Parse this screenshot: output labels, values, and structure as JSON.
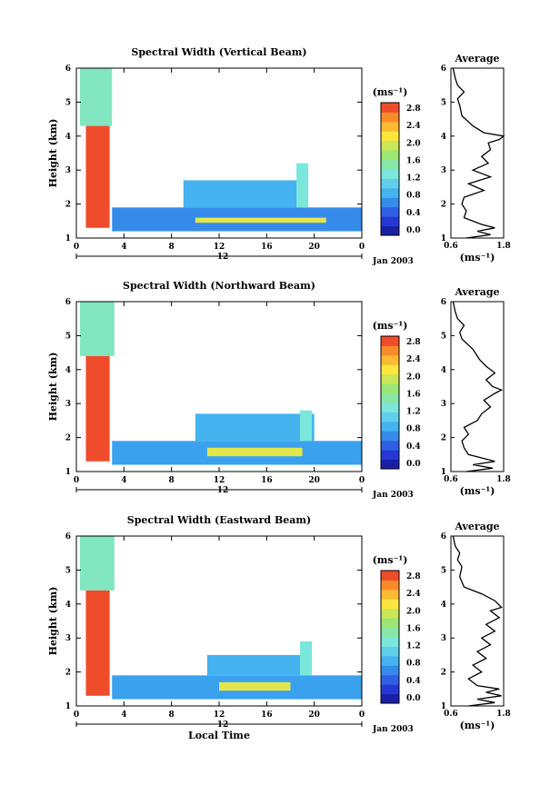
{
  "figure": {
    "xlabel": "Local Time",
    "date_label": "Jan 2003",
    "day_label": "12",
    "colorbar_unit": "(ms⁻¹)",
    "avg_title": "Average",
    "avg_xlabel": "(ms⁻¹)"
  },
  "chart_data": [
    {
      "type": "heatmap",
      "title": "Spectral Width (Vertical Beam)",
      "ylabel": "Height (km)",
      "xlim": [
        0,
        24
      ],
      "ylim": [
        1,
        6
      ],
      "xticks": [
        "0",
        "4",
        "8",
        "12",
        "16",
        "20",
        "0"
      ],
      "yticks": [
        "1",
        "2",
        "3",
        "4",
        "5",
        "6"
      ],
      "colorbar": {
        "range": [
          0.0,
          2.8
        ],
        "ticks": [
          "0.0",
          "0.4",
          "0.8",
          "1.2",
          "1.6",
          "2.0",
          "2.4",
          "2.8"
        ]
      },
      "features": [
        {
          "t": [
            0.3,
            3.0
          ],
          "h": [
            4.3,
            6.0
          ],
          "value": 1.4
        },
        {
          "t": [
            0.8,
            2.8
          ],
          "h": [
            1.3,
            4.3
          ],
          "value": 2.7
        },
        {
          "t": [
            3.0,
            24.0
          ],
          "h": [
            1.2,
            1.9
          ],
          "value": 0.7
        },
        {
          "t": [
            9.0,
            19.0
          ],
          "h": [
            1.9,
            2.7
          ],
          "value": 0.9
        },
        {
          "t": [
            18.5,
            19.5
          ],
          "h": [
            1.9,
            3.2
          ],
          "value": 1.3
        },
        {
          "t": [
            10.0,
            21.0
          ],
          "h": [
            1.45,
            1.6
          ],
          "value": 2.0
        }
      ],
      "average": {
        "xlim": [
          0.6,
          1.8
        ],
        "xticks": [
          "0.6",
          "1.8"
        ],
        "profile": [
          [
            1.0,
            0.95
          ],
          [
            1.1,
            1.5
          ],
          [
            1.2,
            1.2
          ],
          [
            1.3,
            1.6
          ],
          [
            1.4,
            1.3
          ],
          [
            1.6,
            0.9
          ],
          [
            1.8,
            0.95
          ],
          [
            2.0,
            0.85
          ],
          [
            2.2,
            0.9
          ],
          [
            2.4,
            1.35
          ],
          [
            2.6,
            1.0
          ],
          [
            2.8,
            1.5
          ],
          [
            3.0,
            1.1
          ],
          [
            3.2,
            1.45
          ],
          [
            3.4,
            1.3
          ],
          [
            3.6,
            1.5
          ],
          [
            3.8,
            1.45
          ],
          [
            3.9,
            1.7
          ],
          [
            4.0,
            1.8
          ],
          [
            4.1,
            1.35
          ],
          [
            4.3,
            1.1
          ],
          [
            4.6,
            0.85
          ],
          [
            4.9,
            0.8
          ],
          [
            5.1,
            0.75
          ],
          [
            5.3,
            0.9
          ],
          [
            5.5,
            0.75
          ],
          [
            5.7,
            0.7
          ],
          [
            6.0,
            0.65
          ]
        ]
      }
    },
    {
      "type": "heatmap",
      "title": "Spectral Width (Northward Beam)",
      "ylabel": "Height (km)",
      "xlim": [
        0,
        24
      ],
      "ylim": [
        1,
        6
      ],
      "xticks": [
        "0",
        "4",
        "8",
        "12",
        "16",
        "20",
        "0"
      ],
      "yticks": [
        "1",
        "2",
        "3",
        "4",
        "5",
        "6"
      ],
      "colorbar": {
        "range": [
          0.0,
          2.8
        ],
        "ticks": [
          "0.0",
          "0.4",
          "0.8",
          "1.2",
          "1.6",
          "2.0",
          "2.4",
          "2.8"
        ]
      },
      "features": [
        {
          "t": [
            0.3,
            3.2
          ],
          "h": [
            4.4,
            6.0
          ],
          "value": 1.4
        },
        {
          "t": [
            0.8,
            2.8
          ],
          "h": [
            1.3,
            4.4
          ],
          "value": 2.7
        },
        {
          "t": [
            3.0,
            24.0
          ],
          "h": [
            1.2,
            1.9
          ],
          "value": 0.8
        },
        {
          "t": [
            10.0,
            20.0
          ],
          "h": [
            1.9,
            2.7
          ],
          "value": 0.9
        },
        {
          "t": [
            18.8,
            19.8
          ],
          "h": [
            1.9,
            2.8
          ],
          "value": 1.3
        },
        {
          "t": [
            11.0,
            19.0
          ],
          "h": [
            1.45,
            1.7
          ],
          "value": 2.0
        }
      ],
      "average": {
        "xlim": [
          0.6,
          1.8
        ],
        "xticks": [
          "0.6",
          "1.8"
        ],
        "profile": [
          [
            1.0,
            0.95
          ],
          [
            1.1,
            1.55
          ],
          [
            1.2,
            1.1
          ],
          [
            1.3,
            1.6
          ],
          [
            1.5,
            1.0
          ],
          [
            1.7,
            0.9
          ],
          [
            1.9,
            0.85
          ],
          [
            2.1,
            1.0
          ],
          [
            2.3,
            0.9
          ],
          [
            2.5,
            1.2
          ],
          [
            2.7,
            1.3
          ],
          [
            2.9,
            1.5
          ],
          [
            3.1,
            1.35
          ],
          [
            3.3,
            1.6
          ],
          [
            3.4,
            1.75
          ],
          [
            3.5,
            1.55
          ],
          [
            3.7,
            1.4
          ],
          [
            3.9,
            1.6
          ],
          [
            4.1,
            1.4
          ],
          [
            4.3,
            1.25
          ],
          [
            4.6,
            1.1
          ],
          [
            4.9,
            0.85
          ],
          [
            5.1,
            0.8
          ],
          [
            5.3,
            0.9
          ],
          [
            5.5,
            0.75
          ],
          [
            5.7,
            0.7
          ],
          [
            6.0,
            0.65
          ]
        ]
      }
    },
    {
      "type": "heatmap",
      "title": "Spectral Width (Eastward Beam)",
      "ylabel": "Height (km)",
      "xlim": [
        0,
        24
      ],
      "ylim": [
        1,
        6
      ],
      "xticks": [
        "0",
        "4",
        "8",
        "12",
        "16",
        "20",
        "0"
      ],
      "yticks": [
        "1",
        "2",
        "3",
        "4",
        "5",
        "6"
      ],
      "colorbar": {
        "range": [
          0.0,
          2.8
        ],
        "ticks": [
          "0.0",
          "0.4",
          "0.8",
          "1.2",
          "1.6",
          "2.0",
          "2.4",
          "2.8"
        ]
      },
      "features": [
        {
          "t": [
            0.3,
            3.2
          ],
          "h": [
            4.4,
            6.0
          ],
          "value": 1.4
        },
        {
          "t": [
            0.8,
            2.8
          ],
          "h": [
            1.3,
            4.4
          ],
          "value": 2.7
        },
        {
          "t": [
            3.0,
            24.0
          ],
          "h": [
            1.2,
            1.9
          ],
          "value": 0.8
        },
        {
          "t": [
            11.0,
            19.0
          ],
          "h": [
            1.9,
            2.5
          ],
          "value": 0.9
        },
        {
          "t": [
            18.8,
            19.8
          ],
          "h": [
            1.9,
            2.9
          ],
          "value": 1.3
        },
        {
          "t": [
            12.0,
            18.0
          ],
          "h": [
            1.45,
            1.7
          ],
          "value": 2.0
        }
      ],
      "average": {
        "xlim": [
          0.6,
          1.8
        ],
        "xticks": [
          "0.6",
          "1.8"
        ],
        "profile": [
          [
            1.0,
            1.0
          ],
          [
            1.1,
            1.6
          ],
          [
            1.2,
            1.2
          ],
          [
            1.3,
            1.75
          ],
          [
            1.4,
            1.4
          ],
          [
            1.5,
            1.7
          ],
          [
            1.6,
            1.2
          ],
          [
            1.8,
            1.0
          ],
          [
            2.0,
            1.3
          ],
          [
            2.2,
            1.1
          ],
          [
            2.4,
            1.4
          ],
          [
            2.6,
            1.2
          ],
          [
            2.8,
            1.5
          ],
          [
            3.0,
            1.3
          ],
          [
            3.2,
            1.6
          ],
          [
            3.4,
            1.4
          ],
          [
            3.6,
            1.7
          ],
          [
            3.8,
            1.5
          ],
          [
            3.9,
            1.75
          ],
          [
            4.1,
            1.6
          ],
          [
            4.3,
            1.3
          ],
          [
            4.5,
            0.9
          ],
          [
            4.8,
            0.8
          ],
          [
            5.1,
            0.85
          ],
          [
            5.3,
            0.75
          ],
          [
            5.5,
            0.8
          ],
          [
            5.7,
            0.7
          ],
          [
            6.0,
            0.65
          ]
        ]
      }
    }
  ]
}
